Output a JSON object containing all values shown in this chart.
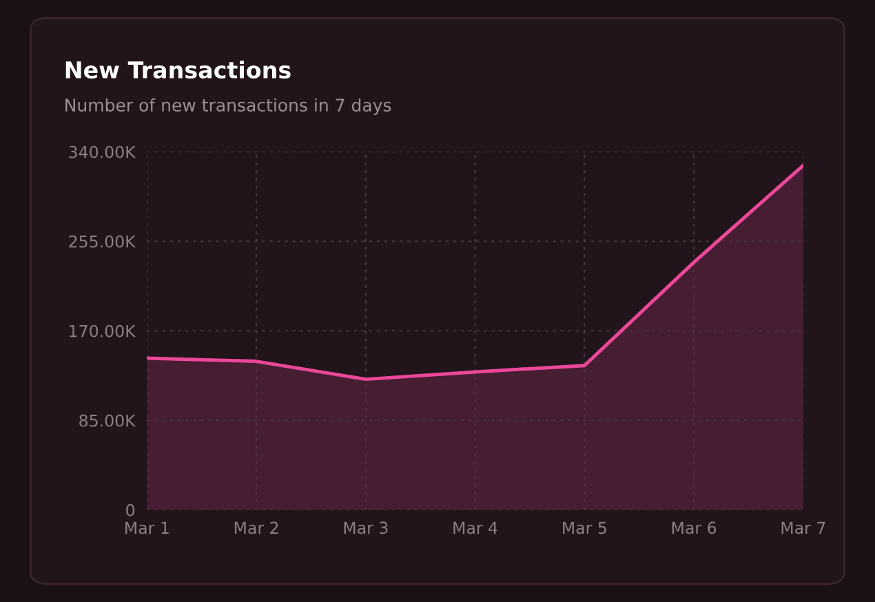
{
  "chart_data": {
    "type": "area",
    "title": "New Transactions",
    "subtitle": "Number of new transactions in 7 days",
    "categories": [
      "Mar 1",
      "Mar 2",
      "Mar 3",
      "Mar 4",
      "Mar 5",
      "Mar 6",
      "Mar 7"
    ],
    "series": [
      {
        "color": "#ec4899",
        "values": [
          144000,
          141000,
          124000,
          131000,
          137000,
          235000,
          327000
        ]
      }
    ],
    "ylim": [
      0,
      340000
    ],
    "yticks": [
      {
        "value": 0,
        "label": "0"
      },
      {
        "value": 85000,
        "label": "85.00K"
      },
      {
        "value": 170000,
        "label": "170.00K"
      },
      {
        "value": 255000,
        "label": "255.00K"
      },
      {
        "value": 340000,
        "label": "340.00K"
      }
    ],
    "grid": true,
    "legend": false
  }
}
